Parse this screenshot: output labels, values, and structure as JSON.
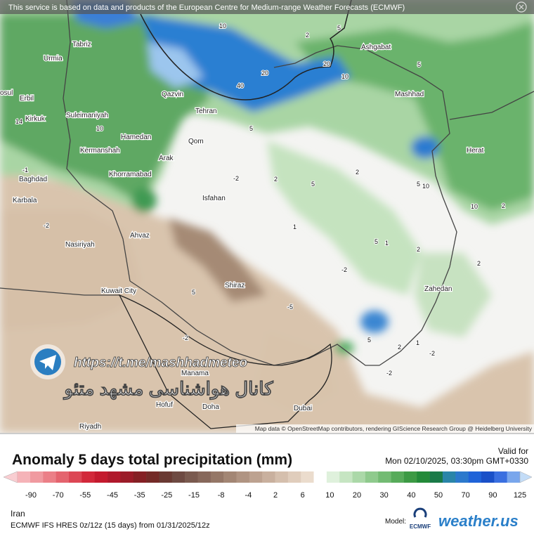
{
  "header": {
    "notice": "This service is based on data and products of the European Centre for Medium-range Weather Forecasts (ECMWF)"
  },
  "map": {
    "cities": [
      "Tabriz",
      "Urmia",
      "osul",
      "Erbil",
      "Kirkuk",
      "Suleimaniyah",
      "Qazvin",
      "Tehran",
      "Hamedan",
      "Kermanshah",
      "Qom",
      "Arak",
      "Khorramabad",
      "Baghdad",
      "Karbala",
      "Isfahan",
      "Ahvaz",
      "Nasiriyah",
      "Shiraz",
      "Kuwait City",
      "Manama",
      "Hofuf",
      "Doha",
      "Dubai",
      "Riyadh",
      "Ashgabat",
      "Mashhad",
      "Herat",
      "Zahedan"
    ],
    "contour_labels": [
      "10",
      "2",
      "5",
      "20",
      "20",
      "40",
      "10",
      "5",
      "10",
      "5",
      "14",
      "-1",
      "-2",
      "2",
      "5",
      "2",
      "5",
      "10",
      "10",
      "2",
      "1",
      "5",
      "1",
      "2",
      "2",
      "-2",
      "-2",
      "5",
      "-5",
      "-2",
      "5",
      "2",
      "-2",
      "-2",
      "1"
    ],
    "credit": "Map data © OpenStreetMap contributors, rendering GIScience Research Group @ Heidelberg University",
    "watermark_url": "https://t.me/mashhadmeteo",
    "watermark_text": "کانال هواشناسی مشهد متئو"
  },
  "legend": {
    "title": "Anomaly 5 days total precipitation (mm)",
    "valid_label": "Valid for",
    "valid_time": "Mon 02/10/2025, 03:30pm GMT+0330",
    "ticks": [
      -90,
      -70,
      -55,
      -45,
      -35,
      -25,
      -15,
      -8,
      -4,
      2,
      6,
      10,
      20,
      30,
      40,
      50,
      70,
      90,
      125
    ],
    "colors": [
      "#f9cdd1",
      "#f5b3b8",
      "#f09aa0",
      "#eb7f87",
      "#e4646e",
      "#dc4654",
      "#d2283a",
      "#c41a2e",
      "#b0182b",
      "#9b1c28",
      "#852024",
      "#742a27",
      "#6a3a33",
      "#6e4a42",
      "#7a5a4f",
      "#87685b",
      "#957767",
      "#a38674",
      "#b09482",
      "#bda290",
      "#c9b09e",
      "#d5bfad",
      "#e0cdbc",
      "#ebdccd",
      "#ffffff",
      "#dff1dc",
      "#c6e5c2",
      "#abd8a8",
      "#8fca8d",
      "#73bb73",
      "#57ab5a",
      "#3c9a44",
      "#238a39",
      "#1a7a48",
      "#2a85a8",
      "#2c79cc",
      "#1f63d8",
      "#1a50c8",
      "#3a6fe0",
      "#79a6ec",
      "#c3dcf7"
    ],
    "region": "Iran",
    "model_run": "ECMWF IFS HRES 0z/12z (15 days) from  01/31/2025/12z",
    "model_label": "Model:",
    "model_logo": "ECMWF",
    "brand": "weather.us"
  }
}
